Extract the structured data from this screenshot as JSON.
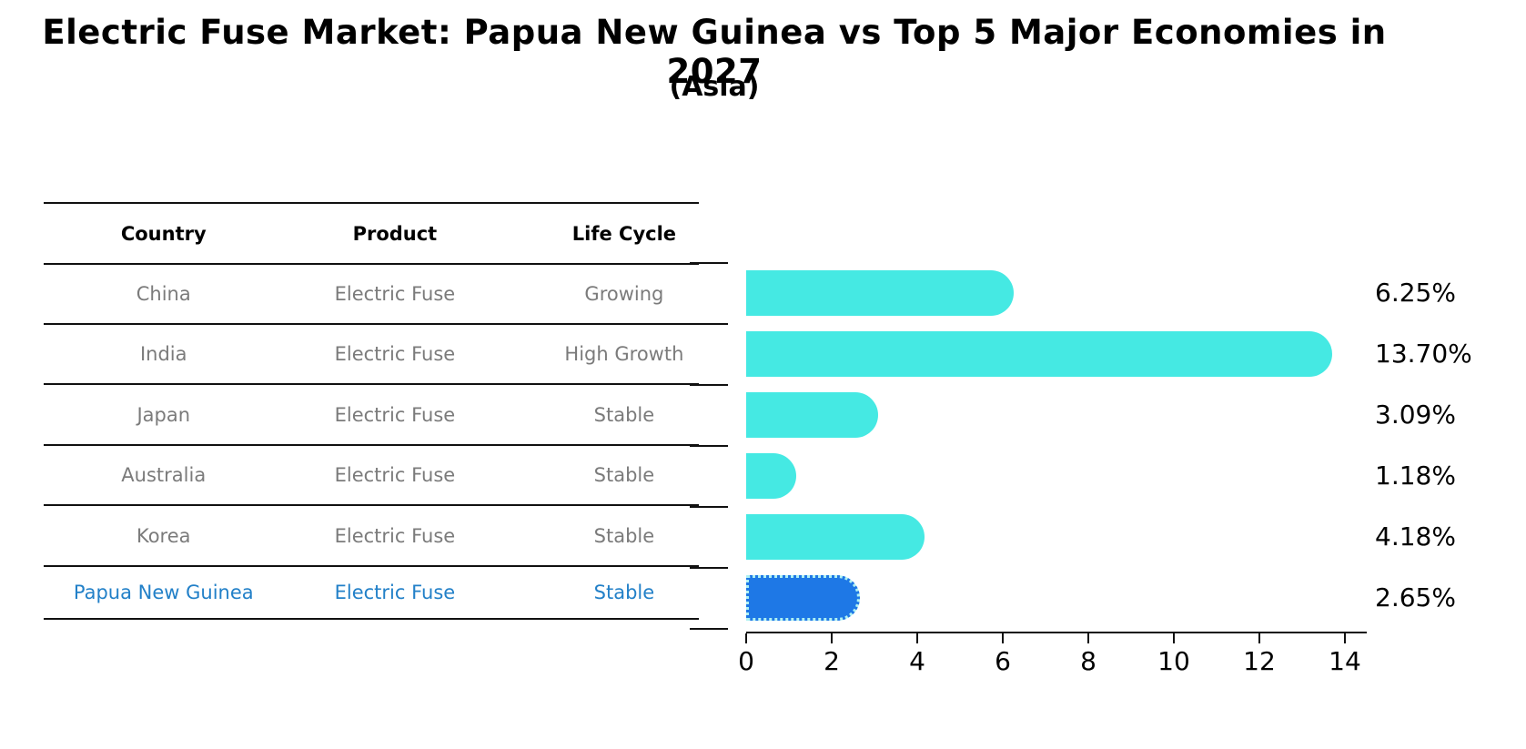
{
  "title": "Electric Fuse Market: Papua New Guinea vs Top 5 Major Economies in 2027",
  "subtitle": "(Asia)",
  "table": {
    "headers": [
      "Country",
      "Product",
      "Life Cycle"
    ],
    "rows": [
      {
        "country": "China",
        "product": "Electric Fuse",
        "life_cycle": "Growing",
        "highlight": false
      },
      {
        "country": "India",
        "product": "Electric Fuse",
        "life_cycle": "High Growth",
        "highlight": false
      },
      {
        "country": "Japan",
        "product": "Electric Fuse",
        "life_cycle": "Stable",
        "highlight": false
      },
      {
        "country": "Australia",
        "product": "Electric Fuse",
        "life_cycle": "Stable",
        "highlight": false
      },
      {
        "country": "Korea",
        "product": "Electric Fuse",
        "life_cycle": "Stable",
        "highlight": false
      },
      {
        "country": "Papua New Guinea",
        "product": "Electric Fuse",
        "life_cycle": "Stable",
        "highlight": true
      }
    ]
  },
  "chart_data": {
    "type": "bar",
    "orientation": "horizontal",
    "categories": [
      "China",
      "India",
      "Japan",
      "Australia",
      "Korea",
      "Papua New Guinea"
    ],
    "values": [
      6.25,
      13.7,
      3.09,
      1.18,
      4.18,
      2.65
    ],
    "value_labels": [
      "6.25%",
      "13.70%",
      "3.09%",
      "1.18%",
      "4.18%",
      "2.65%"
    ],
    "xticks": [
      0,
      2,
      4,
      6,
      8,
      10,
      12,
      14
    ],
    "xlim": [
      0,
      14.5
    ],
    "grid": false,
    "legend": "none",
    "bar_color": "#45E9E3",
    "highlight_index": 5,
    "highlight_bar_color": "#1E78E6",
    "highlight_border_color": "#AFF1F2"
  },
  "colors": {
    "row_text": "#7B7B7B",
    "highlight_text": "#2280C8",
    "header_text": "#000000",
    "axis": "#111111",
    "background": "#FFFFFF"
  }
}
